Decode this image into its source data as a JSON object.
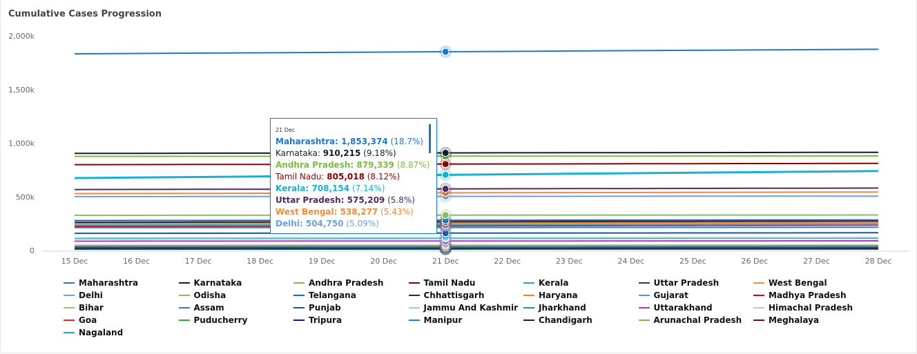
{
  "title": "Cumulative Cases Progression",
  "chart_data": {
    "type": "line",
    "title": "Cumulative Cases Progression",
    "x": [
      "15 Dec",
      "16 Dec",
      "17 Dec",
      "18 Dec",
      "19 Dec",
      "20 Dec",
      "21 Dec",
      "22 Dec",
      "23 Dec",
      "24 Dec",
      "25 Dec",
      "26 Dec",
      "27 Dec",
      "28 Dec"
    ],
    "y_ticks": [
      "0",
      "500k",
      "1,000k",
      "1,500k",
      "2,000k"
    ],
    "ylim": [
      0,
      2000000
    ],
    "grid": false,
    "legend": "bottom",
    "highlight_index": 6,
    "series": [
      {
        "name": "Maharashtra",
        "color": "#1f77c9",
        "start": 1833000,
        "end": 1875000
      },
      {
        "name": "Karnataka",
        "color": "#0d1f2d",
        "start": 905000,
        "end": 915000
      },
      {
        "name": "Andhra Pradesh",
        "color": "#7dbb42",
        "start": 877000,
        "end": 881000
      },
      {
        "name": "Tamil Nadu",
        "color": "#8b0000",
        "start": 800000,
        "end": 812000
      },
      {
        "name": "Kerala",
        "color": "#17b0d1",
        "start": 675000,
        "end": 740000
      },
      {
        "name": "Uttar Pradesh",
        "color": "#4b2c5e",
        "start": 568000,
        "end": 582000
      },
      {
        "name": "West Bengal",
        "color": "#f08a3c",
        "start": 530000,
        "end": 545000
      },
      {
        "name": "Delhi",
        "color": "#6aa0e0",
        "start": 502000,
        "end": 507000
      },
      {
        "name": "Odisha",
        "color": "#8dbb6a",
        "start": 328000,
        "end": 331000
      },
      {
        "name": "Telangana",
        "color": "#1a66b3",
        "start": 279000,
        "end": 285000
      },
      {
        "name": "Chhattisgarh",
        "color": "#3b1f3e",
        "start": 262000,
        "end": 275000
      },
      {
        "name": "Haryana",
        "color": "#ef7f2a",
        "start": 257000,
        "end": 262000
      },
      {
        "name": "Gujarat",
        "color": "#5b8fd6",
        "start": 235000,
        "end": 243000
      },
      {
        "name": "Madhya Pradesh",
        "color": "#d0021b",
        "start": 225000,
        "end": 236000
      },
      {
        "name": "Bihar",
        "color": "#9cc46a",
        "start": 247000,
        "end": 251000
      },
      {
        "name": "Assam",
        "color": "#2a83c4",
        "start": 214000,
        "end": 216000
      },
      {
        "name": "Punjab",
        "color": "#0f5aa8",
        "start": 160000,
        "end": 165000
      },
      {
        "name": "Jammu And Kashmir",
        "color": "#92d0ef",
        "start": 118000,
        "end": 120000
      },
      {
        "name": "Jharkhand",
        "color": "#16a085",
        "start": 112000,
        "end": 114000
      },
      {
        "name": "Uttarakhand",
        "color": "#b535c9",
        "start": 87000,
        "end": 90000
      },
      {
        "name": "Himachal Pradesh",
        "color": "#c8c8c8",
        "start": 52000,
        "end": 54000
      },
      {
        "name": "Goa",
        "color": "#e8261f",
        "start": 49000,
        "end": 50000
      },
      {
        "name": "Puducherry",
        "color": "#27ae3e",
        "start": 37000,
        "end": 38000
      },
      {
        "name": "Tripura",
        "color": "#1111a8",
        "start": 33000,
        "end": 33500
      },
      {
        "name": "Manipur",
        "color": "#1f77c9",
        "start": 27000,
        "end": 28000
      },
      {
        "name": "Chandigarh",
        "color": "#0d1f2d",
        "start": 19000,
        "end": 19500
      },
      {
        "name": "Arunachal Pradesh",
        "color": "#7dbb42",
        "start": 16500,
        "end": 16700
      },
      {
        "name": "Meghalaya",
        "color": "#8b0000",
        "start": 13000,
        "end": 13500
      },
      {
        "name": "Nagaland",
        "color": "#17b0d1",
        "start": 11800,
        "end": 12000
      }
    ]
  },
  "tooltip": {
    "date": "21 Dec",
    "rows": [
      {
        "name": "Maharashtra:",
        "value": "1,853,374",
        "pct": "(18.7%)",
        "color": "#1f77c9"
      },
      {
        "name": "Karnataka:",
        "value": "910,215",
        "pct": "(9.18%)",
        "color": "#0d1f2d"
      },
      {
        "name": "Andhra Pradesh:",
        "value": "879,339",
        "pct": "(8.87%)",
        "color": "#7dbb42"
      },
      {
        "name": "Tamil Nadu:",
        "value": "805,018",
        "pct": "(8.12%)",
        "color": "#8b0000"
      },
      {
        "name": "Kerala:",
        "value": "708,154",
        "pct": "(7.14%)",
        "color": "#17b0d1"
      },
      {
        "name": "Uttar Pradesh:",
        "value": "575,209",
        "pct": "(5.8%)",
        "color": "#4b2c5e"
      },
      {
        "name": "West Bengal:",
        "value": "538,277",
        "pct": "(5.43%)",
        "color": "#f08a3c"
      },
      {
        "name": "Delhi:",
        "value": "504,750",
        "pct": "(5.09%)",
        "color": "#6aa0e0"
      }
    ]
  }
}
